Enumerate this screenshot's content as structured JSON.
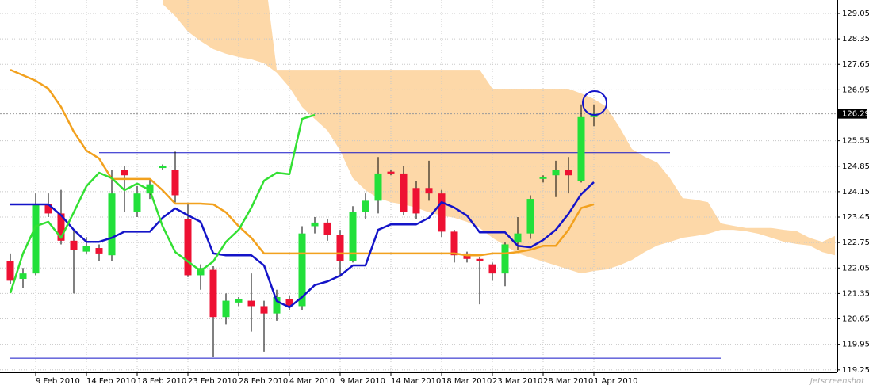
{
  "chart_data": {
    "type": "candlestick",
    "open": [
      122.25,
      121.75,
      121.9,
      123.8,
      123.55,
      122.8,
      122.5,
      122.6,
      122.4,
      124.75,
      123.6,
      124.1,
      124.8,
      124.75,
      123.4,
      121.85,
      122.0,
      120.7,
      121.1,
      121.15,
      121.0,
      120.8,
      121.2,
      121.0,
      123.2,
      123.3,
      122.95,
      122.25,
      123.6,
      123.9,
      124.7,
      124.65,
      124.25,
      124.25,
      124.1,
      123.05,
      122.45,
      122.3,
      122.15,
      121.9,
      122.75,
      123.0,
      124.5,
      124.6,
      124.75,
      124.45,
      126.2
    ],
    "high": [
      122.45,
      122.05,
      124.1,
      124.1,
      124.2,
      123.1,
      122.9,
      122.7,
      124.75,
      124.85,
      124.3,
      124.5,
      124.9,
      125.25,
      123.8,
      122.15,
      122.1,
      121.35,
      121.25,
      121.9,
      121.15,
      121.45,
      121.3,
      123.2,
      123.45,
      123.4,
      123.1,
      123.75,
      124.1,
      125.1,
      124.75,
      124.85,
      124.45,
      125.0,
      124.2,
      123.1,
      122.5,
      122.35,
      122.2,
      122.75,
      123.45,
      124.05,
      124.6,
      125.0,
      125.1,
      126.55,
      126.55
    ],
    "low": [
      121.6,
      121.5,
      121.85,
      123.45,
      122.7,
      121.35,
      122.45,
      122.25,
      122.25,
      123.6,
      123.45,
      123.95,
      124.75,
      123.85,
      121.8,
      121.45,
      119.6,
      120.5,
      121.0,
      120.3,
      119.75,
      120.6,
      120.9,
      120.9,
      123.0,
      122.8,
      121.8,
      122.2,
      123.4,
      123.55,
      124.6,
      123.5,
      123.4,
      123.9,
      122.9,
      122.2,
      122.2,
      121.05,
      121.7,
      121.55,
      122.55,
      122.85,
      124.4,
      124.0,
      124.1,
      124.4,
      125.95
    ],
    "close": [
      121.7,
      121.9,
      123.8,
      123.55,
      122.8,
      122.55,
      122.65,
      122.45,
      124.1,
      124.6,
      124.1,
      124.35,
      124.85,
      124.05,
      121.85,
      122.05,
      120.7,
      121.15,
      121.2,
      121.0,
      120.8,
      121.25,
      121.0,
      123.0,
      123.3,
      122.95,
      122.25,
      123.6,
      123.9,
      124.65,
      124.65,
      123.6,
      123.55,
      124.1,
      123.05,
      122.4,
      122.3,
      122.25,
      121.9,
      122.7,
      123.0,
      123.95,
      124.55,
      124.75,
      124.6,
      126.2,
      126.29
    ],
    "up_color": "#22e03a",
    "down_color": "#ee1133",
    "series": [
      {
        "color": "#f2a11e",
        "values": [
          127.5,
          127.35,
          127.2,
          126.98,
          126.48,
          125.8,
          125.28,
          125.06,
          124.5,
          124.5,
          124.5,
          124.5,
          124.19,
          123.82,
          123.82,
          123.82,
          123.8,
          123.58,
          123.2,
          122.88,
          122.45,
          122.45,
          122.45,
          122.45,
          122.45,
          122.45,
          122.45,
          122.45,
          122.45,
          122.45,
          122.45,
          122.45,
          122.45,
          122.45,
          122.45,
          122.45,
          122.4,
          122.4,
          122.45,
          122.45,
          122.49,
          122.55,
          122.66,
          122.66,
          123.1,
          123.7,
          123.8
        ]
      },
      {
        "color": "#1414c8",
        "values": [
          123.8,
          123.8,
          123.8,
          123.8,
          123.5,
          123.1,
          122.77,
          122.77,
          122.88,
          123.05,
          123.05,
          123.05,
          123.43,
          123.69,
          123.5,
          123.32,
          122.45,
          122.4,
          122.4,
          122.4,
          122.12,
          121.14,
          120.97,
          121.25,
          121.58,
          121.68,
          121.84,
          122.12,
          122.12,
          123.1,
          123.25,
          123.25,
          123.25,
          123.43,
          123.86,
          123.71,
          123.49,
          123.03,
          123.03,
          123.03,
          122.66,
          122.62,
          122.82,
          123.1,
          123.54,
          124.08,
          124.41
        ]
      },
      {
        "color": "#33e033",
        "values": [
          121.36,
          122.45,
          123.2,
          123.32,
          122.88,
          123.58,
          124.3,
          124.67,
          124.52,
          124.19,
          124.37,
          124.19,
          123.2,
          122.49,
          122.23,
          121.97,
          122.23,
          122.77,
          123.1,
          123.71,
          124.45,
          124.67,
          124.63,
          126.15,
          126.26,
          null,
          null,
          null,
          null,
          null,
          null,
          null,
          null,
          null,
          null,
          null,
          null,
          null,
          null,
          null,
          null,
          null,
          null,
          null,
          null,
          null,
          null
        ]
      }
    ],
    "cloud": {
      "color": "#fdd8a8",
      "upper": [
        null,
        null,
        null,
        null,
        null,
        null,
        null,
        null,
        null,
        null,
        null,
        null,
        130.29,
        130.29,
        130.29,
        130.29,
        130.29,
        130.29,
        130.29,
        130.29,
        130.29,
        127.5,
        127.5,
        127.5,
        127.5,
        127.5,
        127.5,
        127.5,
        127.5,
        127.5,
        127.5,
        127.5,
        127.5,
        127.5,
        127.5,
        127.5,
        127.5,
        127.5,
        126.98,
        126.98,
        126.98,
        126.98,
        126.98,
        126.98,
        126.98,
        126.85,
        126.7,
        126.48,
        125.93,
        125.32,
        125.11,
        124.95,
        124.52,
        123.97,
        123.93,
        123.86,
        123.28,
        123.21,
        123.15,
        123.15,
        123.15,
        123.1,
        123.06,
        122.88,
        122.77,
        122.93
      ],
      "lower": [
        null,
        null,
        null,
        null,
        null,
        null,
        null,
        null,
        null,
        null,
        null,
        null,
        129.31,
        128.98,
        128.55,
        128.29,
        128.07,
        127.94,
        127.85,
        127.79,
        127.68,
        127.42,
        127.02,
        126.48,
        126.15,
        125.83,
        125.28,
        124.52,
        124.19,
        123.97,
        123.86,
        123.8,
        123.71,
        123.58,
        123.49,
        123.43,
        123.32,
        123.15,
        122.88,
        122.67,
        122.45,
        122.34,
        122.23,
        122.12,
        122.01,
        121.9,
        121.97,
        122.01,
        122.12,
        122.27,
        122.49,
        122.67,
        122.77,
        122.88,
        122.93,
        122.99,
        123.1,
        123.1,
        123.06,
        122.99,
        122.88,
        122.77,
        122.71,
        122.67,
        122.49,
        122.4
      ]
    },
    "hlines": [
      {
        "value": 125.22,
        "xrange": [
          7,
          52
        ],
        "color": "#1414c8"
      },
      {
        "value": 119.57,
        "xrange": [
          0,
          56
        ],
        "color": "#1414c8"
      }
    ],
    "last_price": 126.29,
    "xlim": [
      -0.8125,
      65.1875
    ],
    "ylim": [
      119.18,
      129.42
    ],
    "yticks": [
      129.05,
      128.35,
      127.65,
      126.95,
      125.55,
      124.85,
      124.15,
      123.45,
      122.75,
      122.05,
      121.35,
      120.65,
      119.95,
      119.25
    ],
    "xticks": [
      {
        "value": 2,
        "label": "9 Feb 2010"
      },
      {
        "value": 6,
        "label": "14 Feb 2010"
      },
      {
        "value": 10,
        "label": "18 Feb 2010"
      },
      {
        "value": 14,
        "label": "23 Feb 2010"
      },
      {
        "value": 18,
        "label": "28 Feb 2010"
      },
      {
        "value": 22,
        "label": "4 Mar 2010"
      },
      {
        "value": 26,
        "label": "9 Mar 2010"
      },
      {
        "value": 30,
        "label": "14 Mar 2010"
      },
      {
        "value": 34,
        "label": "18 Mar 2010"
      },
      {
        "value": 38,
        "label": "23 Mar 2010"
      },
      {
        "value": 42,
        "label": "28 Mar 2010"
      },
      {
        "value": 46,
        "label": "1 Apr 2010"
      }
    ],
    "grid": true,
    "watermark": "Jetscreenshot"
  }
}
